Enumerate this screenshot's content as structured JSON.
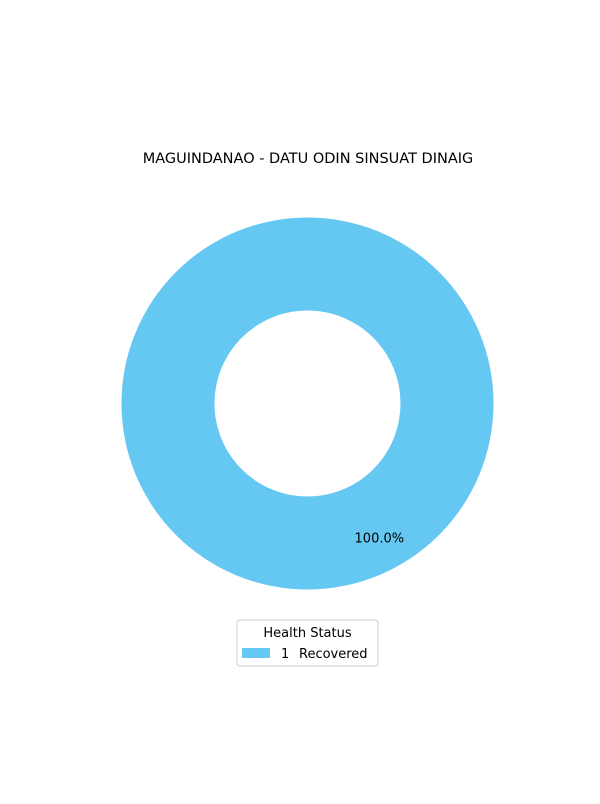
{
  "chart_data": {
    "type": "pie",
    "title": "MAGUINDANAO - DATU ODIN SINSUAT DINAIG",
    "categories": [
      "Recovered"
    ],
    "values": [
      1
    ],
    "value_labels": [
      "100.0%"
    ],
    "colors": [
      "#64C8F3"
    ],
    "donut": true,
    "legend": {
      "title": "Health Status",
      "placement": "bottom-center",
      "entries": [
        {
          "count": "1",
          "label": "Recovered"
        }
      ]
    },
    "grid": false
  }
}
